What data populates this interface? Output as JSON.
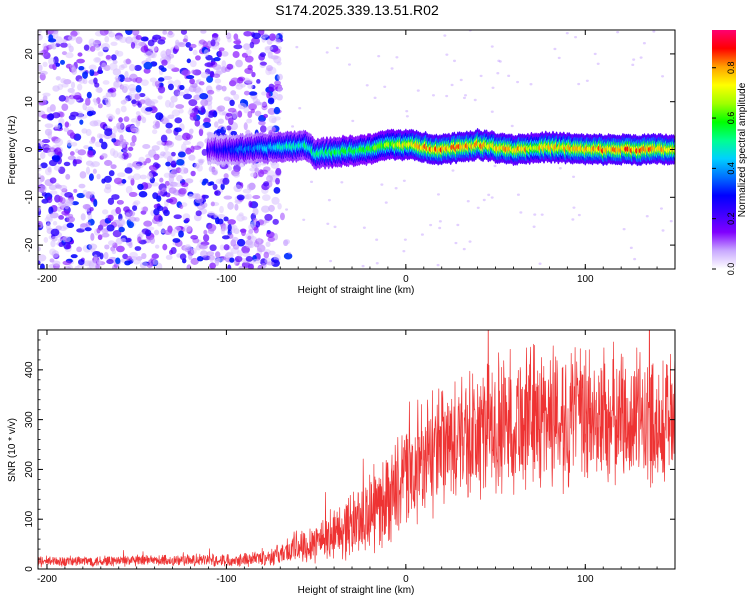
{
  "figure_title": "S174.2025.339.13.51.R02",
  "colors": {
    "frame": "#000000",
    "snr_line": "#ee3333",
    "scatter_low": "#d8c8f4",
    "scatter_high": "#6a00ff"
  },
  "chart_data": [
    {
      "type": "heatmap",
      "name": "spectrogram",
      "xlabel": "Height of straight line (km)",
      "ylabel": "Frequency (Hz)",
      "xlim": [
        -205,
        150
      ],
      "ylim": [
        -25,
        25
      ],
      "xticks": [
        -200,
        -100,
        0,
        100
      ],
      "yticks": [
        -20,
        -10,
        0,
        10,
        20
      ],
      "grid": false,
      "colorbar": {
        "label": "Normalized spectral amplitude",
        "range": [
          0,
          0.95
        ],
        "ticks": [
          0.0,
          0.2,
          0.4,
          0.6,
          0.8
        ],
        "colormap": [
          "#ffffff",
          "#c9a8ff",
          "#8000ff",
          "#3f00ff",
          "#0000ff",
          "#0070ff",
          "#00d0ff",
          "#00ff90",
          "#00ff00",
          "#a0ff00",
          "#ffff00",
          "#ffa000",
          "#ff0000",
          "#ff0070"
        ]
      },
      "noise_region": {
        "x_from": -205,
        "x_to": -70,
        "amplitude_range": [
          0.05,
          0.35
        ]
      },
      "ridge": [
        {
          "x": -110,
          "f": 0.0,
          "amp": 0.25
        },
        {
          "x": -90,
          "f": 0.0,
          "amp": 0.4
        },
        {
          "x": -70,
          "f": 0.5,
          "amp": 0.5
        },
        {
          "x": -55,
          "f": 0.8,
          "amp": 0.55
        },
        {
          "x": -50,
          "f": -1.0,
          "amp": 0.55
        },
        {
          "x": -40,
          "f": -0.5,
          "amp": 0.6
        },
        {
          "x": -20,
          "f": 0.0,
          "amp": 0.65
        },
        {
          "x": -10,
          "f": 1.0,
          "amp": 0.7
        },
        {
          "x": 0,
          "f": 1.0,
          "amp": 0.8
        },
        {
          "x": 20,
          "f": 0.0,
          "amp": 0.9
        },
        {
          "x": 40,
          "f": 1.0,
          "amp": 0.85
        },
        {
          "x": 60,
          "f": 0.0,
          "amp": 0.85
        },
        {
          "x": 80,
          "f": 0.5,
          "amp": 0.8
        },
        {
          "x": 100,
          "f": 0.0,
          "amp": 0.85
        },
        {
          "x": 120,
          "f": 0.0,
          "amp": 0.9
        },
        {
          "x": 150,
          "f": 0.0,
          "amp": 0.85
        }
      ]
    },
    {
      "type": "line",
      "name": "snr",
      "xlabel": "Height of straight line (km)",
      "ylabel": "SNR (10 * v/v)",
      "xlim": [
        -205,
        150
      ],
      "ylim": [
        0,
        480
      ],
      "xticks": [
        -200,
        -100,
        0,
        100
      ],
      "yticks": [
        0,
        100,
        200,
        300,
        400
      ],
      "grid": false,
      "series": [
        {
          "name": "SNR",
          "color": "#ee3333",
          "envelope": [
            {
              "x": -205,
              "mean": 15,
              "spread": 10
            },
            {
              "x": -100,
              "mean": 18,
              "spread": 12
            },
            {
              "x": -80,
              "mean": 22,
              "spread": 15
            },
            {
              "x": -70,
              "mean": 30,
              "spread": 20
            },
            {
              "x": -60,
              "mean": 45,
              "spread": 35
            },
            {
              "x": -40,
              "mean": 70,
              "spread": 50
            },
            {
              "x": -20,
              "mean": 110,
              "spread": 80
            },
            {
              "x": 0,
              "mean": 180,
              "spread": 100
            },
            {
              "x": 20,
              "mean": 240,
              "spread": 120
            },
            {
              "x": 40,
              "mean": 270,
              "spread": 130
            },
            {
              "x": 60,
              "mean": 300,
              "spread": 140
            },
            {
              "x": 80,
              "mean": 310,
              "spread": 140
            },
            {
              "x": 100,
              "mean": 300,
              "spread": 140
            },
            {
              "x": 120,
              "mean": 305,
              "spread": 130
            },
            {
              "x": 150,
              "mean": 300,
              "spread": 130
            }
          ]
        }
      ]
    }
  ]
}
